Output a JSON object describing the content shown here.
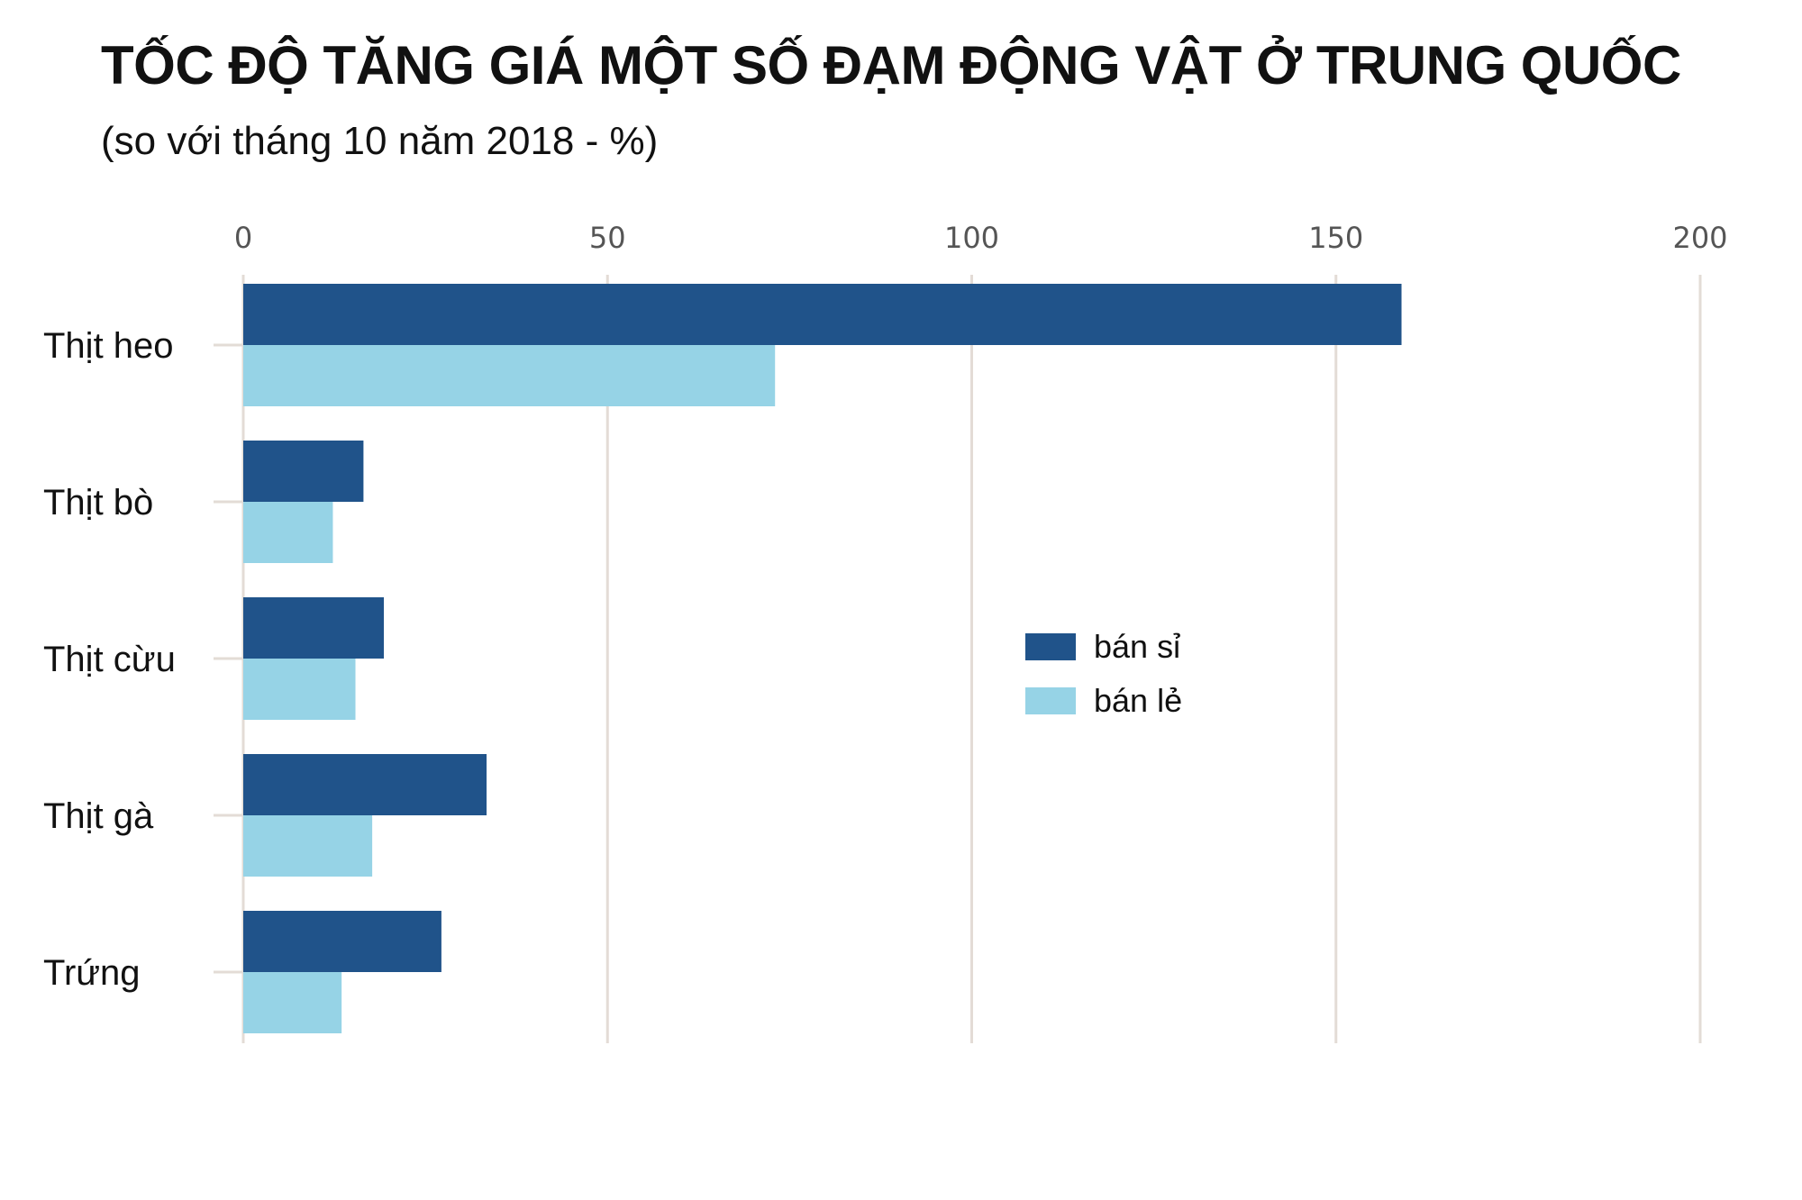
{
  "chart_data": {
    "type": "bar",
    "orientation": "horizontal",
    "title": "TỐC ĐỘ TĂNG GIÁ MỘT SỐ ĐẠM ĐỘNG VẬT Ở TRUNG QUỐC",
    "subtitle": "(so với tháng 10 năm 2018 - %)",
    "categories": [
      "Thịt heo",
      "Thịt bò",
      "Thịt cừu",
      "Thịt gà",
      "Trứng"
    ],
    "series": [
      {
        "name": "bán sỉ",
        "color": "#20538a",
        "values": [
          159,
          16.5,
          19.3,
          33.4,
          27.2
        ]
      },
      {
        "name": "bán lẻ",
        "color": "#96d3e6",
        "values": [
          73,
          12.3,
          15.4,
          17.7,
          13.5
        ]
      }
    ],
    "xlim": [
      0,
      200
    ],
    "xticks": [
      0,
      50,
      100,
      150,
      200
    ],
    "xaxis_position": "top",
    "grid": true,
    "legend_position": "center-right"
  },
  "colors": {
    "gridline": "#e3dcd6",
    "tick_label": "#555555",
    "category_label": "#111111"
  }
}
